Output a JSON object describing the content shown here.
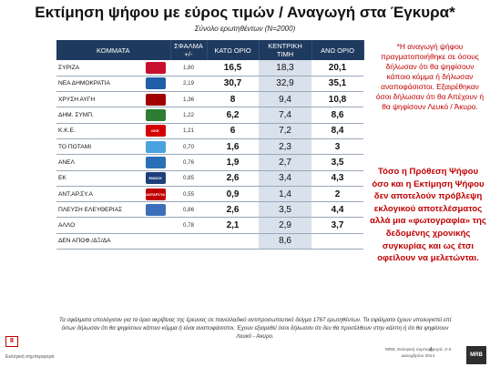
{
  "header": {
    "title": "Εκτίμηση ψήφου με εύρος τιμών / Αναγωγή στα Έγκυρα*",
    "subtitle": "Σύνολο ερωτηθέντων (Ν=2000)"
  },
  "table": {
    "headers": {
      "party": "ΚΟΜΜΑΤΑ",
      "error": "ΣΦΑΛΜΑ +/-",
      "low": "ΚΑΤΩ ΟΡΙΟ",
      "mid": "ΚΕΝΤΡΙΚΗ ΤΙΜΗ",
      "high": "ΑΝΩ ΟΡΙΟ"
    },
    "rows": [
      {
        "party": "ΣΥΡΙΖΑ",
        "logo_color": "#c8102e",
        "logo_icon": "syriza-logo-icon",
        "error": "1,80",
        "low": "16,5",
        "mid": "18,3",
        "high": "20,1"
      },
      {
        "party": "ΝΕΑ ΔΗΜΟΚΡΑΤΙΑ",
        "logo_color": "#1f5fa8",
        "logo_icon": "nd-logo-icon",
        "error": "2,19",
        "low": "30,7",
        "mid": "32,9",
        "high": "35,1"
      },
      {
        "party": "ΧΡΥΣΗ ΑΥΓΗ",
        "logo_color": "#a00000",
        "logo_icon": "xa-logo-icon",
        "error": "1,36",
        "low": "8",
        "mid": "9,4",
        "high": "10,8"
      },
      {
        "party": "ΔΗΜ. ΣΥΜΠ.",
        "logo_color": "#2e7d32",
        "logo_icon": "dimsymp-logo-icon",
        "error": "1,22",
        "low": "6,2",
        "mid": "7,4",
        "high": "8,6"
      },
      {
        "party": "Κ.Κ.Ε.",
        "logo_color": "#d40000",
        "logo_icon": "kke-logo-icon",
        "error": "1,21",
        "logo_text": "ΚΚΕ",
        "low": "6",
        "mid": "7,2",
        "high": "8,4"
      },
      {
        "party": "ΤΟ ΠΟΤΑΜΙ",
        "logo_color": "#4aa3df",
        "logo_icon": "potami-logo-icon",
        "error": "0,70",
        "low": "1,6",
        "mid": "2,3",
        "high": "3"
      },
      {
        "party": "ΑΝΕΛ",
        "logo_color": "#2a6fb5",
        "logo_icon": "anel-logo-icon",
        "error": "0,76",
        "low": "1,9",
        "mid": "2,7",
        "high": "3,5"
      },
      {
        "party": "ΕΚ",
        "logo_color": "#1b3f7a",
        "logo_icon": "ek-logo-icon",
        "error": "0,85",
        "logo_text": "ΕΝΩΣΗ ΚΕΝΤΡΩΩΝ",
        "low": "2,6",
        "mid": "3,4",
        "high": "4,3"
      },
      {
        "party": "ΑΝΤ.ΑΡ.ΣΥ.Α",
        "logo_color": "#c00000",
        "logo_icon": "antarsya-logo-icon",
        "error": "0,55",
        "logo_text": "ΑΝΤΑΡΣΥΑ",
        "low": "0,9",
        "mid": "1,4",
        "high": "2"
      },
      {
        "party": "ΠΛΕΥΣΗ ΕΛΕΥΘΕΡΙΑΣ",
        "logo_color": "#3d6fb8",
        "logo_icon": "plefsi-logo-icon",
        "error": "0,86",
        "low": "2,6",
        "mid": "3,5",
        "high": "4,4"
      },
      {
        "party": "ΑΛΛΟ",
        "logo_color": "",
        "logo_icon": "",
        "error": "0,78",
        "low": "2,1",
        "mid": "2,9",
        "high": "3,7"
      },
      {
        "party": "ΔΕΝ ΑΠΟΦ./ΔΞ/ΔΑ",
        "logo_color": "",
        "logo_icon": "",
        "error": "",
        "low": "",
        "mid": "8,6",
        "high": ""
      }
    ]
  },
  "notes": {
    "note1": "*Η αναγωγή ψήφου πραγματοποιήθηκε σε όσους δήλωσαν ότι θα ψηφίσουν κάποιο κόμμα ή δήλωσαν αναποφάσιστοι. Εξαιρέθηκαν όσοι δήλωσαν ότι θα Απέχουν ή θα ψηφίσουν Λευκό / Άκυρο.",
    "note2": "Τόσο η Πρόθεση Ψήφου όσο και η Εκτίμηση Ψήφου δεν αποτελούν πρόβλεψη εκλογικού αποτελέσματος αλλά μια «φωτογραφία» της δεδομένης χρονικής συγκυρίας και ως έτσι οφείλουν να μελετώνται."
  },
  "footnote": "Τα σφάλματα υπολόγισαν για τα όρια ακρίβειας της έρευνας σε πανελλαδικό αντιπροσωπευτικό δείγμα 1767 ερωτηθέντων. Τα σφάλματα έχουν υπολογιστεί επί όσων δήλωσαν ότι θα ψηφίσουν κάποιο κόμμα ή είναι αναποφάσιστοι. Έχουν εξαιρεθεί όσοι δήλωσαν ότι δεν θα προσέλθουν στην κάλπη ή ότι θα ψηφίσουν Λευκό - Άκυρο.",
  "footer": {
    "page_number": "8",
    "left_text": "Εκλογική σημπεριφορά",
    "right_text": "MRB, Εκλογική συμπεριφορά, 2-3 Δεκεμβρίου 2014",
    "slide_number": "4",
    "logo_text": "MRB"
  }
}
